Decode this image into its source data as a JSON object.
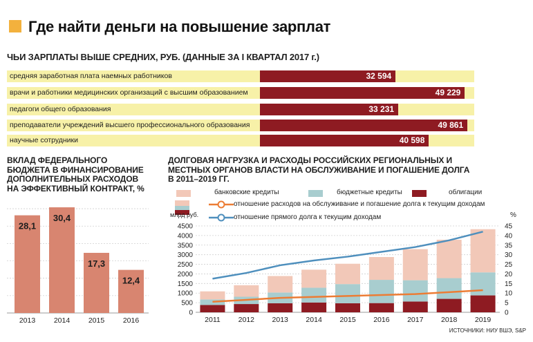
{
  "headline": "Где найти деньги на повышение зарплат",
  "salary_chart_title": "ЧЬИ ЗАРПЛАТЫ ВЫШЕ СРЕДНИХ, РУБ. (ДАННЫЕ ЗА I КВАРТАЛ 2017 г.)",
  "federal_chart_title": "ВКЛАД ФЕДЕРАЛЬНОГО БЮДЖЕТА В ФИНАНСИРОВАНИЕ ДОПОЛНИТЕЛЬНЫХ РАСХОДОВ НА ЭФФЕКТИВНЫЙ КОНТРАКТ, %",
  "debt_chart_title": "ДОЛГОВАЯ НАГРУЗКА И РАСХОДЫ РОССИЙСКИХ РЕГИОНАЛЬНЫХ И МЕСТНЫХ ОРГАНОВ ВЛАСТИ НА ОБСЛУЖИВАНИЕ И ПОГАШЕНИЕ ДОЛГА В 2011–2019 ГГ.",
  "source_text": "ИСТОЧНИКИ: НИУ ВШЭ, S&P",
  "colors": {
    "maroon": "#8e1b22",
    "salmon": "#d88570",
    "pink": "#f2c8b8",
    "teal": "#a8cdcf",
    "orange": "#ec7c34",
    "blue": "#4e8fbd",
    "yellow": "#f7f1a8"
  },
  "chart_data": [
    {
      "type": "bar",
      "orientation": "horizontal",
      "title": "ЧЬИ ЗАРПЛАТЫ ВЫШЕ СРЕДНИХ, РУБ. (ДАННЫЕ ЗА I КВАРТАЛ 2017 г.)",
      "categories": [
        "средняя заработная плата наемных работников",
        "врачи и работники медицинских организаций с высшим образованием",
        "педагоги общего образования",
        "преподаватели учреждений высшего профессионального образования",
        "научные сотрудники"
      ],
      "values": [
        32594,
        49229,
        33231,
        49861,
        40598
      ],
      "value_labels": [
        "32 594",
        "49 229",
        "33 231",
        "49 861",
        "40 598"
      ]
    },
    {
      "type": "bar",
      "title": "ВКЛАД ФЕДЕРАЛЬНОГО БЮДЖЕТА В ФИНАНСИРОВАНИЕ ДОПОЛНИТЕЛЬНЫХ РАСХОДОВ НА ЭФФЕКТИВНЫЙ КОНТРАКТ, %",
      "categories": [
        "2013",
        "2014",
        "2015",
        "2016"
      ],
      "values": [
        28.1,
        30.4,
        17.3,
        12.4
      ],
      "value_labels": [
        "28,1",
        "30,4",
        "17,3",
        "12,4"
      ],
      "grid": true
    },
    {
      "type": "bar",
      "stacked": true,
      "title": "ДОЛГОВАЯ НАГРУЗКА И РАСХОДЫ РОССИЙСКИХ РЕГИОНАЛЬНЫХ И МЕСТНЫХ ОРГАНОВ ВЛАСТИ НА ОБСЛУЖИВАНИЕ И ПОГАШЕНИЕ ДОЛГА В 2011–2019 ГГ.",
      "categories": [
        "2011",
        "2012",
        "2013",
        "2014",
        "2015",
        "2016",
        "2017",
        "2018",
        "2019"
      ],
      "ylabel_left": "млрд руб.",
      "ylabel_right": "%",
      "ylim_left": [
        0,
        4500
      ],
      "ylim_right": [
        0,
        45
      ],
      "yticks_left": [
        0,
        500,
        1000,
        1500,
        2000,
        2500,
        3000,
        3500,
        4000,
        4500
      ],
      "yticks_right": [
        0,
        5,
        10,
        15,
        20,
        25,
        30,
        35,
        40,
        45
      ],
      "grid": true,
      "series": [
        {
          "name": "облигации",
          "kind": "bar",
          "axis": "left",
          "color": "#8e1b22",
          "values": [
            380,
            430,
            470,
            510,
            470,
            480,
            560,
            700,
            880
          ]
        },
        {
          "name": "бюджетные кредиты",
          "kind": "bar",
          "axis": "left",
          "color": "#a8cdcf",
          "values": [
            290,
            380,
            560,
            770,
            1000,
            1210,
            1110,
            1080,
            1200
          ]
        },
        {
          "name": "банковские кредиты",
          "kind": "bar",
          "axis": "left",
          "color": "#f2c8b8",
          "values": [
            420,
            600,
            860,
            940,
            1060,
            1190,
            1620,
            2000,
            2250
          ]
        },
        {
          "name": "отношение расходов на обслуживание и погашение долга к текущим доходам",
          "kind": "line",
          "axis": "right",
          "color": "#ec7c34",
          "values": [
            5.5,
            6.5,
            7.5,
            8.0,
            8.5,
            9.0,
            9.5,
            10.5,
            11.5
          ]
        },
        {
          "name": "отношение прямого долга к текущим доходам",
          "kind": "line",
          "axis": "right",
          "color": "#4e8fbd",
          "values": [
            17.5,
            20.5,
            24.5,
            27.0,
            29.0,
            31.5,
            34.0,
            37.5,
            42.0
          ]
        }
      ]
    }
  ]
}
